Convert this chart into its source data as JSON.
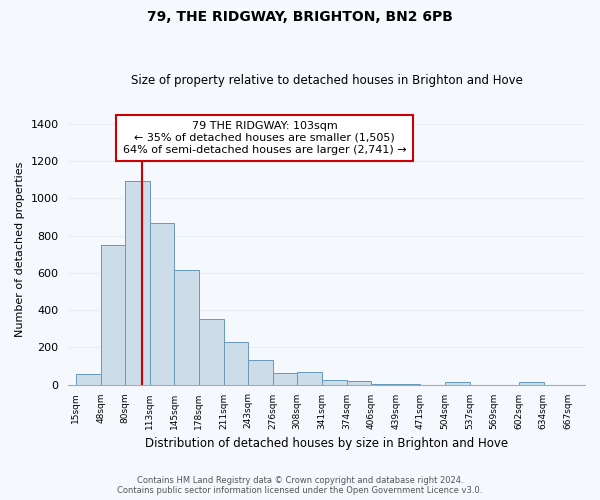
{
  "title": "79, THE RIDGWAY, BRIGHTON, BN2 6PB",
  "subtitle": "Size of property relative to detached houses in Brighton and Hove",
  "xlabel": "Distribution of detached houses by size in Brighton and Hove",
  "ylabel": "Number of detached properties",
  "bar_values": [
    55,
    750,
    1095,
    870,
    615,
    350,
    230,
    130,
    65,
    70,
    25,
    18,
    5,
    2,
    0,
    12,
    0,
    12
  ],
  "bar_left_edges": [
    15,
    48,
    80,
    113,
    145,
    178,
    211,
    243,
    276,
    308,
    341,
    374,
    406,
    439,
    471,
    504,
    537,
    602
  ],
  "bar_widths": [
    33,
    32,
    33,
    32,
    33,
    33,
    32,
    33,
    32,
    33,
    33,
    32,
    33,
    32,
    33,
    33,
    32,
    33
  ],
  "tick_labels": [
    "15sqm",
    "48sqm",
    "80sqm",
    "113sqm",
    "145sqm",
    "178sqm",
    "211sqm",
    "243sqm",
    "276sqm",
    "308sqm",
    "341sqm",
    "374sqm",
    "406sqm",
    "439sqm",
    "471sqm",
    "504sqm",
    "537sqm",
    "569sqm",
    "602sqm",
    "634sqm",
    "667sqm"
  ],
  "tick_positions": [
    15,
    48,
    80,
    113,
    145,
    178,
    211,
    243,
    276,
    308,
    341,
    374,
    406,
    439,
    471,
    504,
    537,
    569,
    602,
    634,
    667
  ],
  "bar_color": "#ccdce8",
  "bar_edge_color": "#6699bb",
  "vline_x": 103,
  "vline_color": "#cc0000",
  "ylim": [
    0,
    1450
  ],
  "xlim": [
    5,
    690
  ],
  "annotation_title": "79 THE RIDGWAY: 103sqm",
  "annotation_line1": "← 35% of detached houses are smaller (1,505)",
  "annotation_line2": "64% of semi-detached houses are larger (2,741) →",
  "footer_line1": "Contains HM Land Registry data © Crown copyright and database right 2024.",
  "footer_line2": "Contains public sector information licensed under the Open Government Licence v3.0.",
  "background_color": "#f5f8fc",
  "grid_color": "#e8eef4"
}
